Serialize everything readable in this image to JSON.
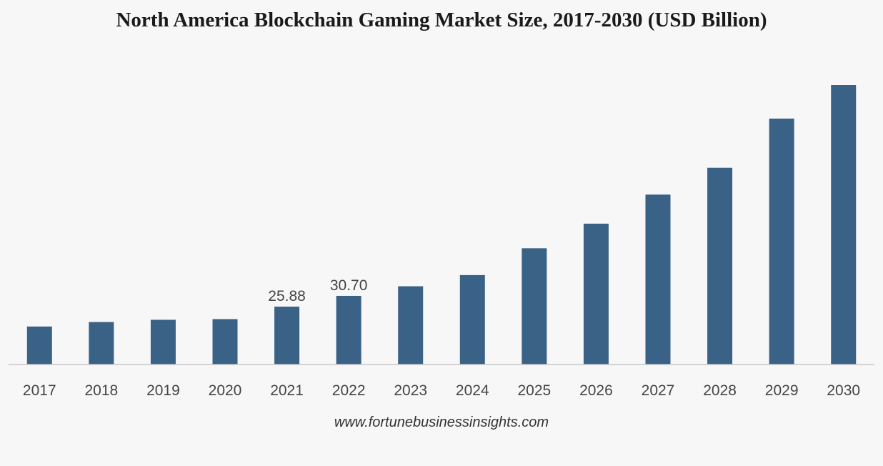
{
  "chart_data": {
    "type": "bar",
    "title": "North America Blockchain Gaming Market Size, 2017-2030 (USD Billion)",
    "xlabel": "",
    "ylabel": "",
    "categories": [
      "2017",
      "2018",
      "2019",
      "2020",
      "2021",
      "2022",
      "2023",
      "2024",
      "2025",
      "2026",
      "2027",
      "2028",
      "2029",
      "2030"
    ],
    "values": [
      17.0,
      19.0,
      20.0,
      20.3,
      25.88,
      30.7,
      35.0,
      40.0,
      52.0,
      63.0,
      76.0,
      88.0,
      110.0,
      125.0
    ],
    "data_labels": {
      "2021": "25.88",
      "2022": "30.70"
    },
    "ylim": [
      0,
      125
    ],
    "grid": false,
    "legend": "none",
    "bar_color": "#3a6286"
  },
  "source": "www.fortunebusinessinsights.com"
}
